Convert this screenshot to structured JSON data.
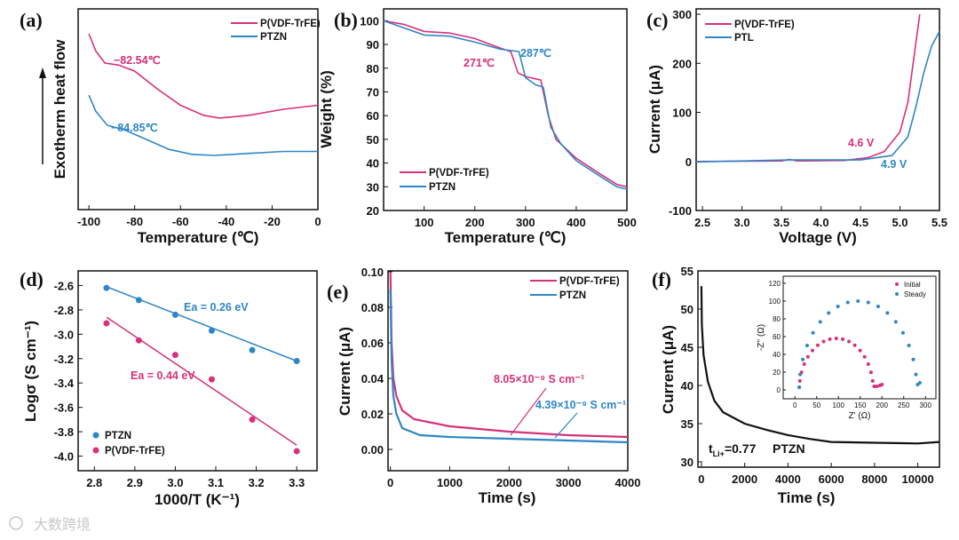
{
  "colors": {
    "pink": "#d6317a",
    "blue": "#2f86c6",
    "black": "#111111"
  },
  "watermark": "大数跨境",
  "chart_data": [
    {
      "panel": "(a)",
      "type": "line",
      "xlabel": "Temperature (℃)",
      "ylabel": "Exotherm heat flow",
      "xlim": [
        -104.7,
        0
      ],
      "ylim": [
        0,
        1
      ],
      "xticks": [
        -100,
        -80,
        -60,
        -40,
        -20,
        0
      ],
      "xtick_labels": [
        "-100",
        "-80",
        "-60",
        "-40",
        "-20",
        "0"
      ],
      "yticks": [],
      "ytick_labels": [],
      "series": [
        {
          "name": "P(VDF-TrFE)",
          "color": "#d6317a",
          "x": [
            -100,
            -97,
            -93,
            -87,
            -80,
            -70,
            -60,
            -50,
            -43,
            -30,
            -15,
            0
          ],
          "y": [
            0.876,
            0.79,
            0.73,
            0.72,
            0.69,
            0.6,
            0.52,
            0.47,
            0.456,
            0.47,
            0.5,
            0.52
          ]
        },
        {
          "name": "PTZN",
          "color": "#2f86c6",
          "x": [
            -100,
            -97,
            -92,
            -85,
            -75,
            -65,
            -55,
            -45,
            -30,
            -15,
            0
          ],
          "y": [
            0.57,
            0.49,
            0.42,
            0.4,
            0.35,
            0.3,
            0.275,
            0.27,
            0.28,
            0.29,
            0.29
          ]
        }
      ],
      "annotations": [
        {
          "text": "−82.54℃",
          "color": "#d6317a"
        },
        {
          "text": "−84.85℃",
          "color": "#2f86c6"
        }
      ],
      "legend": "top-right"
    },
    {
      "panel": "(b)",
      "type": "line",
      "xlabel": "Temperature (℃)",
      "ylabel": "Weight (%)",
      "xlim": [
        20,
        500
      ],
      "ylim": [
        20,
        105
      ],
      "xticks": [
        100,
        200,
        300,
        400,
        500
      ],
      "xtick_labels": [
        "100",
        "200",
        "300",
        "400",
        "500"
      ],
      "yticks": [
        20,
        30,
        40,
        50,
        60,
        70,
        80,
        90,
        100
      ],
      "ytick_labels": [
        "20",
        "30",
        "40",
        "50",
        "60",
        "70",
        "80",
        "90",
        "100"
      ],
      "series": [
        {
          "name": "P(VDF-TrFE)",
          "color": "#d6317a",
          "x": [
            20,
            60,
            100,
            150,
            200,
            250,
            271,
            285,
            300,
            330,
            345,
            360,
            400,
            450,
            480,
            500
          ],
          "y": [
            100,
            98.5,
            95.5,
            94.8,
            92.5,
            88.5,
            87,
            78,
            76.5,
            75,
            60,
            50,
            42,
            35,
            31,
            30
          ]
        },
        {
          "name": "PTZN",
          "color": "#2f86c6",
          "x": [
            20,
            60,
            100,
            150,
            200,
            250,
            287,
            300,
            320,
            335,
            350,
            370,
            400,
            450,
            480,
            500
          ],
          "y": [
            100,
            97,
            94,
            93.5,
            91,
            88,
            87,
            76,
            73,
            72,
            55,
            48,
            41,
            34,
            30,
            29
          ]
        }
      ],
      "annotations": [
        {
          "text": "271℃",
          "color": "#d6317a"
        },
        {
          "text": "287℃",
          "color": "#2f86c6"
        }
      ],
      "legend": "bottom-left"
    },
    {
      "panel": "(c)",
      "type": "line",
      "xlabel": "Voltage (V)",
      "ylabel": "Current (μA)",
      "xlim": [
        2.42,
        5.5
      ],
      "ylim": [
        -100,
        311
      ],
      "xticks": [
        2.5,
        3.0,
        3.5,
        4.0,
        4.5,
        5.0,
        5.5
      ],
      "xtick_labels": [
        "2.5",
        "3.0",
        "3.5",
        "4.0",
        "4.5",
        "5.0",
        "5.5"
      ],
      "yticks": [
        -100,
        0,
        100,
        200,
        300
      ],
      "ytick_labels": [
        "-100",
        "0",
        "100",
        "200",
        "300"
      ],
      "series": [
        {
          "name": "P(VDF-TrFE)",
          "color": "#d6317a",
          "x": [
            2.42,
            3.5,
            3.6,
            3.7,
            4.3,
            4.6,
            4.8,
            5.0,
            5.1,
            5.2,
            5.25
          ],
          "y": [
            0,
            1,
            4,
            1,
            2,
            8,
            20,
            60,
            120,
            240,
            300
          ]
        },
        {
          "name": "PTL",
          "color": "#2f86c6",
          "x": [
            2.42,
            3.6,
            4.5,
            4.9,
            5.1,
            5.2,
            5.3,
            5.4,
            5.5
          ],
          "y": [
            -1,
            3,
            3,
            12,
            50,
            110,
            180,
            235,
            265
          ]
        }
      ],
      "annotations": [
        {
          "text": "4.6 V",
          "color": "#d6317a"
        },
        {
          "text": "4.9 V",
          "color": "#2f86c6"
        }
      ],
      "legend": "top-left"
    },
    {
      "panel": "(d)",
      "type": "scatter",
      "xlabel": "1000/T (K⁻¹)",
      "ylabel": "Logσ (S cm⁻¹)",
      "xlim": [
        2.76,
        3.35
      ],
      "ylim": [
        -4.12,
        -2.48
      ],
      "xticks": [
        2.8,
        2.9,
        3.0,
        3.1,
        3.2,
        3.3
      ],
      "xtick_labels": [
        "2.8",
        "2.9",
        "3.0",
        "3.1",
        "3.2",
        "3.3"
      ],
      "yticks": [
        -4.0,
        -3.8,
        -3.6,
        -3.4,
        -3.2,
        -3.0,
        -2.8,
        -2.6
      ],
      "ytick_labels": [
        "-4.0",
        "-3.8",
        "-3.6",
        "-3.4",
        "-3.2",
        "-3.0",
        "-2.8",
        "-2.6"
      ],
      "series": [
        {
          "name": "PTZN",
          "color": "#2f86c6",
          "x": [
            2.83,
            2.91,
            3.0,
            3.09,
            3.19,
            3.3
          ],
          "y": [
            -2.62,
            -2.72,
            -2.84,
            -2.97,
            -3.13,
            -3.22
          ],
          "fit": {
            "x": [
              2.83,
              3.3
            ],
            "y": [
              -2.61,
              -3.22
            ]
          }
        },
        {
          "name": "P(VDF-TrFE)",
          "color": "#d6317a",
          "x": [
            2.83,
            2.91,
            3.0,
            3.09,
            3.19,
            3.3
          ],
          "y": [
            -2.91,
            -3.05,
            -3.17,
            -3.37,
            -3.7,
            -3.96
          ],
          "fit": {
            "x": [
              2.83,
              3.3
            ],
            "y": [
              -2.86,
              -3.91
            ]
          }
        }
      ],
      "annotations": [
        {
          "text": "Ea = 0.26 eV",
          "color": "#2f86c6"
        },
        {
          "text": "Ea = 0.44 eV",
          "color": "#d6317a"
        }
      ],
      "legend": "bottom-left"
    },
    {
      "panel": "(e)",
      "type": "line",
      "xlabel": "Time (s)",
      "ylabel": "Current (μA)",
      "xlim": [
        -40,
        4000
      ],
      "ylim": [
        -0.012,
        0.1005
      ],
      "xticks": [
        0,
        1000,
        2000,
        3000,
        4000
      ],
      "xtick_labels": [
        "0",
        "1000",
        "2000",
        "3000",
        "4000"
      ],
      "yticks": [
        0,
        0.02,
        0.04,
        0.06,
        0.08,
        0.1
      ],
      "ytick_labels": [
        "0.00",
        "0.02",
        "0.04",
        "0.06",
        "0.08",
        "0.10"
      ],
      "series": [
        {
          "name": "P(VDF-TrFE)",
          "color": "#d6317a",
          "x": [
            0,
            20,
            50,
            100,
            200,
            400,
            1000,
            2000,
            3000,
            4000
          ],
          "y": [
            0.1,
            0.06,
            0.04,
            0.03,
            0.022,
            0.017,
            0.013,
            0.01,
            0.008,
            0.007
          ]
        },
        {
          "name": "PTZN",
          "color": "#2f86c6",
          "x": [
            0,
            20,
            50,
            100,
            200,
            500,
            1000,
            2000,
            3000,
            4000
          ],
          "y": [
            0.09,
            0.05,
            0.03,
            0.02,
            0.012,
            0.008,
            0.007,
            0.006,
            0.005,
            0.004
          ]
        }
      ],
      "annotations": [
        {
          "text": "8.05×10⁻⁹ S cm⁻¹",
          "color": "#d6317a"
        },
        {
          "text": "4.39×10⁻⁹ S cm⁻¹",
          "color": "#2f86c6"
        }
      ],
      "legend": "top-right"
    },
    {
      "panel": "(f)",
      "type": "line",
      "xlabel": "Time (s)",
      "ylabel": "Current (μA)",
      "xlim": [
        -160,
        11000
      ],
      "ylim": [
        29.3,
        55
      ],
      "xticks": [
        0,
        2000,
        4000,
        6000,
        8000,
        10000
      ],
      "xtick_labels": [
        "0",
        "2000",
        "4000",
        "6000",
        "8000",
        "10000"
      ],
      "yticks": [
        30,
        35,
        40,
        45,
        50,
        55
      ],
      "ytick_labels": [
        "30",
        "35",
        "40",
        "45",
        "50",
        "55"
      ],
      "series": [
        {
          "name": "PTZN",
          "color": "#111111",
          "x": [
            0,
            20,
            100,
            300,
            600,
            1000,
            2000,
            3000,
            4000,
            5000,
            6000,
            8000,
            10000,
            11000
          ],
          "y": [
            53,
            48,
            44,
            40.5,
            38,
            36.5,
            35,
            34.2,
            33.5,
            33,
            32.6,
            32.5,
            32.4,
            32.6
          ]
        }
      ],
      "annotations": [
        {
          "t": "t",
          "sub": "Li+",
          "value": "=0.77",
          "sample": "PTZN"
        }
      ],
      "inset": {
        "type": "scatter",
        "xlabel": "Z' (Ω)",
        "ylabel": "-Z'' (Ω)",
        "xlim": [
          -27,
          324
        ],
        "ylim": [
          -10,
          128
        ],
        "xticks": [
          0,
          50,
          100,
          150,
          200,
          250,
          300
        ],
        "xtick_labels": [
          "0",
          "50",
          "100",
          "150",
          "200",
          "250",
          "300"
        ],
        "yticks": [
          0,
          20,
          40,
          60,
          80,
          100,
          120
        ],
        "ytick_labels": [
          "0",
          "20",
          "40",
          "60",
          "80",
          "100",
          "120"
        ],
        "series": [
          {
            "name": "Initial",
            "color": "#d6317a",
            "x": [
              10,
              11.3,
              15.1,
              21.4,
              29.9,
              40.3,
              52.5,
              65.9,
              80.2,
              95,
              109.8,
              124.1,
              137.5,
              149.7,
              160.1,
              168.6,
              174.9,
              178.7,
              182,
              188,
              195,
              200
            ],
            "y": [
              3,
              10.1,
              19.8,
              29,
              37.3,
              44.4,
              50.2,
              54.5,
              57.1,
              58,
              57.1,
              54.5,
              50.2,
              44.4,
              37.3,
              29,
              19.8,
              10.1,
              4,
              4,
              5,
              6
            ]
          },
          {
            "name": "Steady",
            "color": "#2f86c6",
            "x": [
              10,
              12,
              18.1,
              28.1,
              41.6,
              58.2,
              77.5,
              98.8,
              121.5,
              145,
              168.5,
              191.2,
              212.5,
              231.8,
              248.4,
              261.9,
              271.9,
              278,
              282,
              287
            ],
            "y": [
              3,
              17.4,
              34.2,
              50,
              64.3,
              76.6,
              86.6,
              94,
              98.5,
              100,
              98.5,
              94,
              86.6,
              76.6,
              64.3,
              50,
              34.2,
              17.4,
              6,
              8
            ]
          }
        ]
      }
    }
  ]
}
